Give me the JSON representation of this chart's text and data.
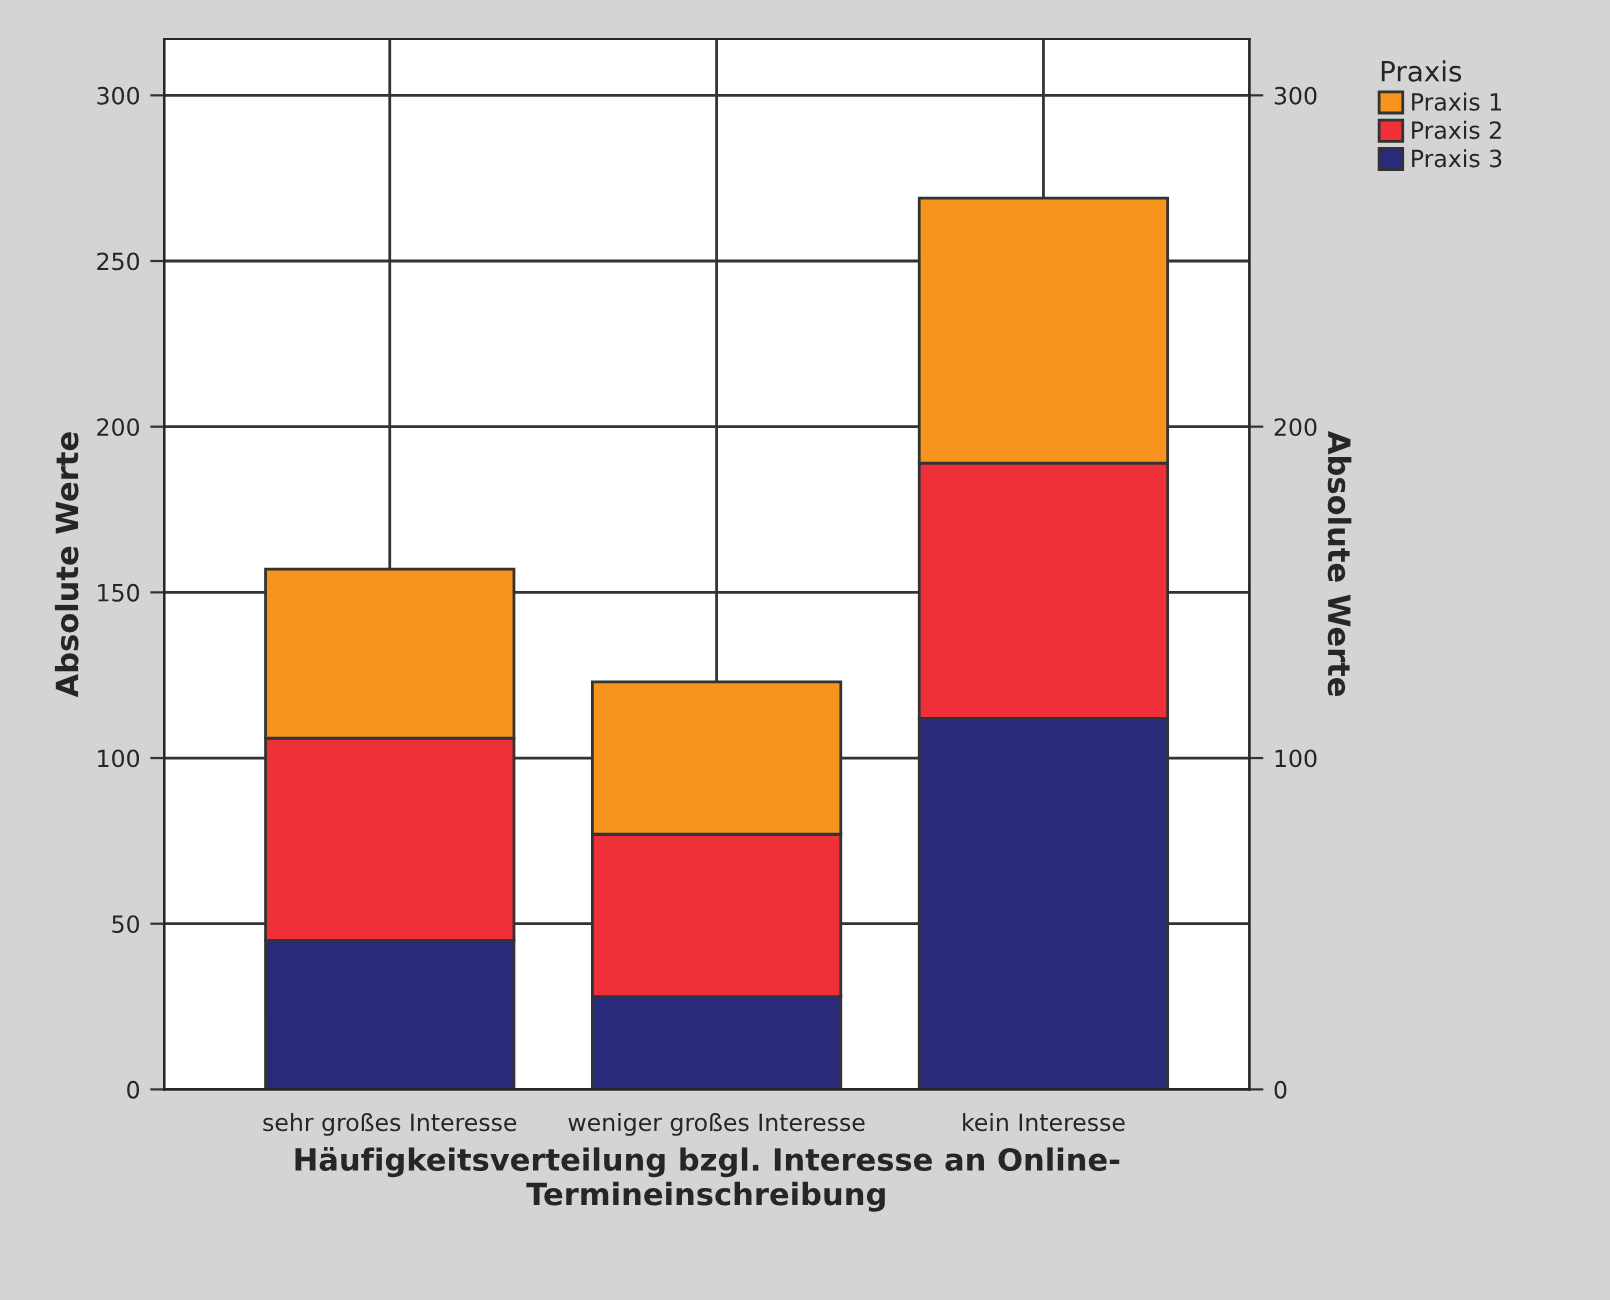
{
  "chart_data": {
    "type": "bar",
    "stacked": true,
    "xlabel": "Häufigkeitsverteilung bzgl. Interesse an Online-\nTermineinschreibung",
    "ylabel": "Absolute Werte",
    "y2label": "Absolute Werte",
    "legend_title": "Praxis",
    "categories": [
      "sehr großes Interesse",
      "weniger großes Interesse",
      "kein Interesse"
    ],
    "series": [
      {
        "name": "Praxis 3",
        "color": "#2a2a7a",
        "values": [
          45,
          28,
          112
        ]
      },
      {
        "name": "Praxis 2",
        "color": "#ef3038",
        "values": [
          61,
          49,
          77
        ]
      },
      {
        "name": "Praxis 1",
        "color": "#f7941d",
        "values": [
          51,
          46,
          80
        ]
      }
    ],
    "ylim": [
      0,
      317
    ],
    "yticks": [
      0,
      50,
      100,
      150,
      200,
      250,
      300
    ],
    "y2lim": [
      0,
      317
    ],
    "y2ticks": [
      0,
      100,
      200,
      300
    ],
    "grid": true,
    "legend": "top right"
  }
}
